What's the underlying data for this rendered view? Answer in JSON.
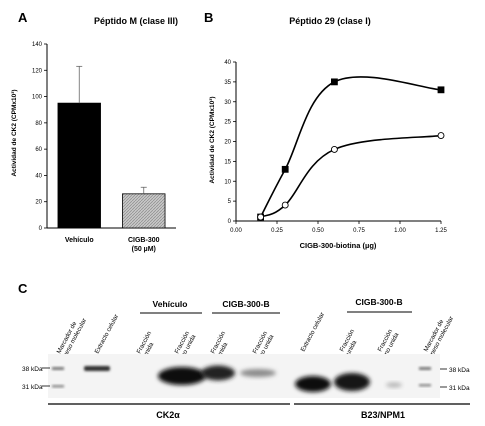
{
  "panels": {
    "a": {
      "letter": "A",
      "chart_data": {
        "type": "bar",
        "title": "Péptido M (clase III)",
        "ylabel": "Actividad de CK2 (CPMx10³)",
        "xlabel": "",
        "ylim": [
          0,
          140
        ],
        "yticks": [
          0,
          20,
          40,
          60,
          80,
          100,
          120,
          140
        ],
        "categories": [
          [
            "Vehículo"
          ],
          [
            "CIGB-300",
            "(50 µM)"
          ]
        ],
        "values": [
          95,
          26
        ],
        "errors": [
          28,
          5
        ],
        "colors": [
          "#000000",
          "#b3b3b3"
        ],
        "patterns": [
          "solid",
          "hatched"
        ],
        "grid": false
      }
    },
    "b": {
      "letter": "B",
      "chart_data": {
        "type": "line",
        "title": "Péptido 29 (clase I)",
        "ylabel": "Actividad de CK2 (CPMx10³)",
        "xlabel": "CIGB-300-biotina (µg)",
        "xlim": [
          0,
          1.25
        ],
        "ylim": [
          0,
          40
        ],
        "xticks": [
          0.0,
          0.25,
          0.5,
          0.75,
          1.0,
          1.25
        ],
        "xtick_labels": [
          "0.00",
          "0.25",
          "0.50",
          "0.75",
          "1.00",
          "1.25"
        ],
        "yticks": [
          0,
          5,
          10,
          15,
          20,
          25,
          30,
          35,
          40
        ],
        "grid": false,
        "series": [
          {
            "marker": "square",
            "fill": "#000000",
            "x": [
              0.15,
              0.3,
              0.6,
              1.25
            ],
            "y": [
              1.0,
              13.0,
              35.0,
              33.0
            ]
          },
          {
            "marker": "circle",
            "fill": "#ffffff",
            "x": [
              0.15,
              0.3,
              0.6,
              1.25
            ],
            "y": [
              1.0,
              4.0,
              18.0,
              21.5
            ]
          }
        ]
      }
    },
    "c": {
      "letter": "C",
      "left_blot": {
        "lanes": [
          [
            "Marcador de",
            "peso molecular"
          ],
          [
            "Extracto celular"
          ],
          [
            "Fracción",
            "unida"
          ],
          [
            "Fracción",
            "no unida"
          ],
          [
            "Fracción",
            "unida"
          ],
          [
            "Fracción",
            "no unida"
          ]
        ],
        "groups": [
          "Vehículo",
          "CIGB-300-B"
        ],
        "mw_labels": [
          "38 kDa",
          "31 kDa"
        ],
        "protein": "CK2α"
      },
      "right_blot": {
        "lanes": [
          [
            "Extracto celular"
          ],
          [
            "Fracción",
            "unida"
          ],
          [
            "Fracción",
            "no unida"
          ],
          [
            "Marcador de",
            "peso molecular"
          ]
        ],
        "groups": [
          "CIGB-300-B"
        ],
        "mw_labels": [
          "38 kDa",
          "31 kDa"
        ],
        "protein": "B23/NPM1"
      }
    }
  }
}
